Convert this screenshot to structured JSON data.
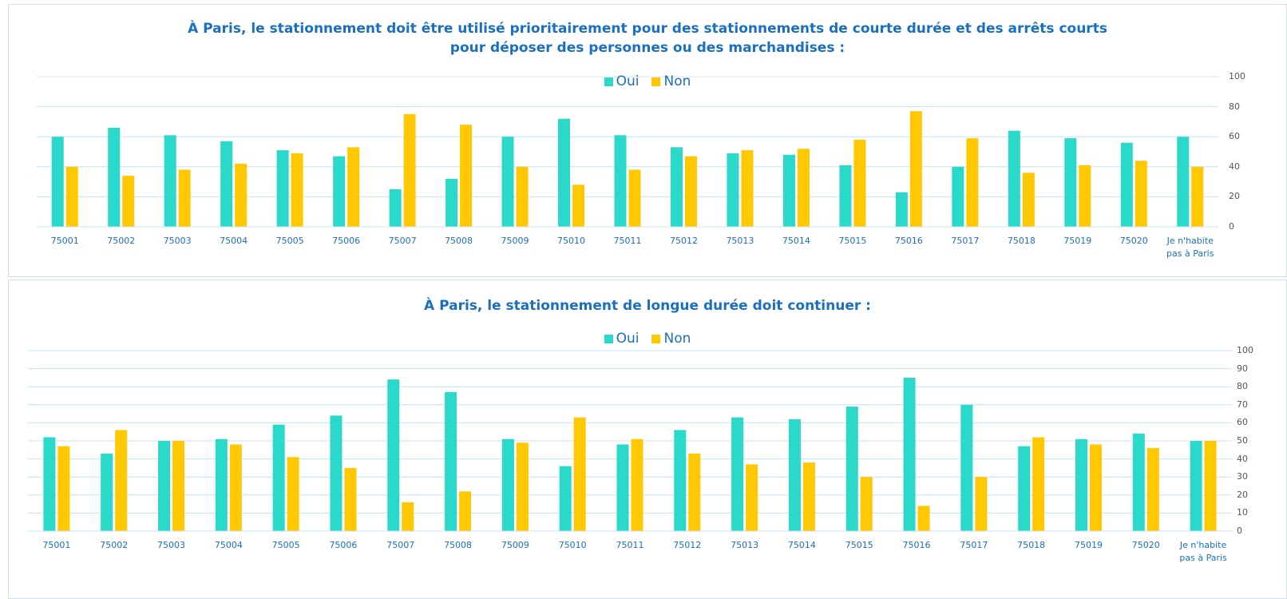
{
  "chart_data": [
    {
      "type": "bar",
      "title": "À Paris, le stationnement doit être utilisé prioritairement pour des stationnements de courte durée et des arrêts courts pour déposer des personnes ou des marchandises :",
      "categories": [
        "75001",
        "75002",
        "75003",
        "75004",
        "75005",
        "75006",
        "75007",
        "75008",
        "75009",
        "75010",
        "75011",
        "75012",
        "75013",
        "75014",
        "75015",
        "75016",
        "75017",
        "75018",
        "75019",
        "75020",
        "Je n'habite pas à Paris"
      ],
      "series": [
        {
          "name": "Oui",
          "color": "#2ad9c9",
          "values": [
            60,
            66,
            61,
            57,
            51,
            47,
            25,
            32,
            60,
            72,
            61,
            53,
            49,
            48,
            41,
            23,
            40,
            64,
            59,
            56,
            60
          ]
        },
        {
          "name": "Non",
          "color": "#ffc800",
          "values": [
            40,
            34,
            38,
            42,
            49,
            53,
            75,
            68,
            40,
            28,
            38,
            47,
            51,
            52,
            58,
            77,
            59,
            36,
            41,
            44,
            40
          ]
        }
      ],
      "ylim": [
        0,
        100
      ],
      "yticks": [
        0,
        20,
        40,
        60,
        80,
        100
      ],
      "grid": true,
      "legend": "top"
    },
    {
      "type": "bar",
      "title": "À Paris,  le stationnement de longue durée doit continuer :",
      "categories": [
        "75001",
        "75002",
        "75003",
        "75004",
        "75005",
        "75006",
        "75007",
        "75008",
        "75009",
        "75010",
        "75011",
        "75012",
        "75013",
        "75014",
        "75015",
        "75016",
        "75017",
        "75018",
        "75019",
        "75020",
        "Je n'habite pas à Paris"
      ],
      "series": [
        {
          "name": "Oui",
          "color": "#2ad9c9",
          "values": [
            52,
            43,
            50,
            51,
            59,
            64,
            84,
            77,
            51,
            36,
            48,
            56,
            63,
            62,
            69,
            85,
            70,
            47,
            51,
            54,
            50
          ]
        },
        {
          "name": "Non",
          "color": "#ffc800",
          "values": [
            47,
            56,
            50,
            48,
            41,
            35,
            16,
            22,
            49,
            63,
            51,
            43,
            37,
            38,
            30,
            14,
            30,
            52,
            48,
            46,
            50
          ]
        }
      ],
      "ylim": [
        0,
        100
      ],
      "yticks": [
        0,
        10,
        20,
        30,
        40,
        50,
        60,
        70,
        80,
        90,
        100
      ],
      "grid": true,
      "legend": "top"
    }
  ]
}
